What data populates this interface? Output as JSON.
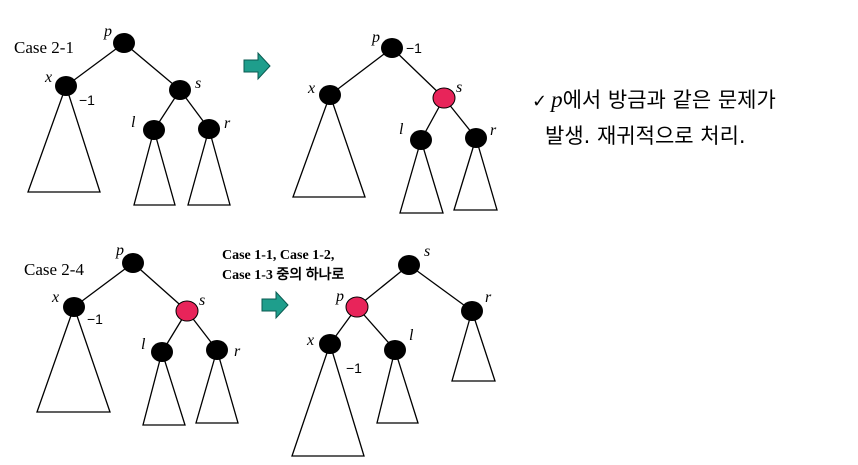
{
  "colors": {
    "black_node": "#000000",
    "red_node": "#e8245a",
    "arrow_fill": "#1e9e8c",
    "arrow_stroke": "#0a5a50"
  },
  "cases": {
    "case_2_1_label": "Case 2-1",
    "case_2_4_label": "Case 2-4"
  },
  "transition_caption": {
    "line1": "Case 1-1, Case 1-2,",
    "line2": "Case 1-3 중의 하나로"
  },
  "node_names": {
    "p": "p",
    "x": "x",
    "s": "s",
    "l": "l",
    "r": "r"
  },
  "double_black_mark": "−1",
  "note": {
    "check": "✓",
    "var": "p",
    "line1_rest": "에서 방금과 같은 문제가",
    "line2": "발생. 재귀적으로 처리."
  }
}
